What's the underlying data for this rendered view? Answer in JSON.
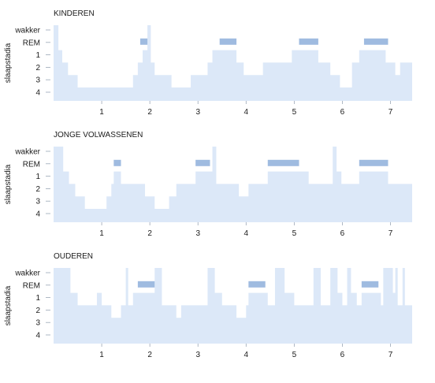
{
  "chart_data": [
    {
      "type": "area",
      "title": "KINDEREN",
      "ylabel": "slaapstadia",
      "y_categories": [
        "wakker",
        "REM",
        "1",
        "2",
        "3",
        "4"
      ],
      "xticks": [
        "1",
        "2",
        "3",
        "4",
        "5",
        "6",
        "7"
      ],
      "xlim": [
        0,
        7.45
      ],
      "fill_color": "#dce8f8",
      "rem_color": "#9fbbe0",
      "hypnogram": [
        {
          "x": 0.0,
          "stage": "wakker"
        },
        {
          "x": 0.1,
          "stage": "1"
        },
        {
          "x": 0.18,
          "stage": "2"
        },
        {
          "x": 0.3,
          "stage": "3"
        },
        {
          "x": 0.5,
          "stage": "4"
        },
        {
          "x": 1.65,
          "stage": "3"
        },
        {
          "x": 1.75,
          "stage": "2"
        },
        {
          "x": 1.85,
          "stage": "1"
        },
        {
          "x": 1.95,
          "stage": "wakker"
        },
        {
          "x": 2.02,
          "stage": "2"
        },
        {
          "x": 2.1,
          "stage": "3"
        },
        {
          "x": 2.25,
          "stage": "3"
        },
        {
          "x": 2.45,
          "stage": "4"
        },
        {
          "x": 2.85,
          "stage": "3"
        },
        {
          "x": 3.2,
          "stage": "2"
        },
        {
          "x": 3.3,
          "stage": "1"
        },
        {
          "x": 3.8,
          "stage": "2"
        },
        {
          "x": 3.95,
          "stage": "3"
        },
        {
          "x": 4.35,
          "stage": "2"
        },
        {
          "x": 4.95,
          "stage": "1"
        },
        {
          "x": 5.5,
          "stage": "2"
        },
        {
          "x": 5.75,
          "stage": "3"
        },
        {
          "x": 5.95,
          "stage": "4"
        },
        {
          "x": 6.2,
          "stage": "2"
        },
        {
          "x": 6.35,
          "stage": "1"
        },
        {
          "x": 6.9,
          "stage": "2"
        },
        {
          "x": 7.1,
          "stage": "3"
        },
        {
          "x": 7.2,
          "stage": "2"
        }
      ],
      "rem_periods": [
        [
          1.8,
          1.95
        ],
        [
          3.45,
          3.8
        ],
        [
          5.1,
          5.5
        ],
        [
          6.45,
          6.95
        ]
      ]
    },
    {
      "type": "area",
      "title": "JONGE VOLWASSENEN",
      "ylabel": "slaapstadia",
      "y_categories": [
        "wakker",
        "REM",
        "1",
        "2",
        "3",
        "4"
      ],
      "xticks": [
        "1",
        "2",
        "3",
        "4",
        "5",
        "6",
        "7"
      ],
      "xlim": [
        0,
        7.45
      ],
      "fill_color": "#dce8f8",
      "rem_color": "#9fbbe0",
      "hypnogram": [
        {
          "x": 0.0,
          "stage": "wakker"
        },
        {
          "x": 0.2,
          "stage": "1"
        },
        {
          "x": 0.32,
          "stage": "2"
        },
        {
          "x": 0.45,
          "stage": "3"
        },
        {
          "x": 0.65,
          "stage": "4"
        },
        {
          "x": 1.1,
          "stage": "3"
        },
        {
          "x": 1.2,
          "stage": "2"
        },
        {
          "x": 1.25,
          "stage": "1"
        },
        {
          "x": 1.4,
          "stage": "2"
        },
        {
          "x": 1.9,
          "stage": "3"
        },
        {
          "x": 2.1,
          "stage": "4"
        },
        {
          "x": 2.4,
          "stage": "3"
        },
        {
          "x": 2.55,
          "stage": "2"
        },
        {
          "x": 2.95,
          "stage": "1"
        },
        {
          "x": 3.3,
          "stage": "wakker"
        },
        {
          "x": 3.38,
          "stage": "2"
        },
        {
          "x": 3.85,
          "stage": "3"
        },
        {
          "x": 4.05,
          "stage": "2"
        },
        {
          "x": 4.45,
          "stage": "1"
        },
        {
          "x": 5.3,
          "stage": "2"
        },
        {
          "x": 5.8,
          "stage": "wakker"
        },
        {
          "x": 5.88,
          "stage": "1"
        },
        {
          "x": 5.98,
          "stage": "2"
        },
        {
          "x": 6.35,
          "stage": "1"
        },
        {
          "x": 6.95,
          "stage": "2"
        }
      ],
      "rem_periods": [
        [
          1.25,
          1.4
        ],
        [
          2.95,
          3.25
        ],
        [
          4.45,
          5.1
        ],
        [
          6.35,
          6.95
        ]
      ]
    },
    {
      "type": "area",
      "title": "OUDEREN",
      "ylabel": "slaapstadia",
      "y_categories": [
        "wakker",
        "REM",
        "1",
        "2",
        "3",
        "4"
      ],
      "xticks": [
        "1",
        "2",
        "3",
        "4",
        "5",
        "6",
        "7"
      ],
      "xlim": [
        0,
        7.45
      ],
      "fill_color": "#dce8f8",
      "rem_color": "#9fbbe0",
      "hypnogram": [
        {
          "x": 0.0,
          "stage": "wakker"
        },
        {
          "x": 0.35,
          "stage": "1"
        },
        {
          "x": 0.5,
          "stage": "2"
        },
        {
          "x": 0.9,
          "stage": "1"
        },
        {
          "x": 1.0,
          "stage": "2"
        },
        {
          "x": 1.2,
          "stage": "3"
        },
        {
          "x": 1.4,
          "stage": "2"
        },
        {
          "x": 1.5,
          "stage": "wakker"
        },
        {
          "x": 1.55,
          "stage": "2"
        },
        {
          "x": 1.65,
          "stage": "1"
        },
        {
          "x": 2.1,
          "stage": "wakker"
        },
        {
          "x": 2.25,
          "stage": "2"
        },
        {
          "x": 2.55,
          "stage": "3"
        },
        {
          "x": 2.65,
          "stage": "2"
        },
        {
          "x": 3.2,
          "stage": "wakker"
        },
        {
          "x": 3.35,
          "stage": "1"
        },
        {
          "x": 3.5,
          "stage": "2"
        },
        {
          "x": 3.8,
          "stage": "3"
        },
        {
          "x": 4.0,
          "stage": "2"
        },
        {
          "x": 4.05,
          "stage": "1"
        },
        {
          "x": 4.45,
          "stage": "2"
        },
        {
          "x": 4.6,
          "stage": "wakker"
        },
        {
          "x": 4.8,
          "stage": "1"
        },
        {
          "x": 5.0,
          "stage": "2"
        },
        {
          "x": 5.4,
          "stage": "wakker"
        },
        {
          "x": 5.55,
          "stage": "2"
        },
        {
          "x": 5.75,
          "stage": "wakker"
        },
        {
          "x": 5.9,
          "stage": "1"
        },
        {
          "x": 6.0,
          "stage": "2"
        },
        {
          "x": 6.1,
          "stage": "wakker"
        },
        {
          "x": 6.18,
          "stage": "1"
        },
        {
          "x": 6.3,
          "stage": "2"
        },
        {
          "x": 6.4,
          "stage": "1"
        },
        {
          "x": 6.8,
          "stage": "2"
        },
        {
          "x": 6.85,
          "stage": "wakker"
        },
        {
          "x": 7.05,
          "stage": "1"
        },
        {
          "x": 7.1,
          "stage": "wakker"
        },
        {
          "x": 7.15,
          "stage": "2"
        },
        {
          "x": 7.25,
          "stage": "wakker"
        },
        {
          "x": 7.3,
          "stage": "2"
        }
      ],
      "rem_periods": [
        [
          1.75,
          2.1
        ],
        [
          4.05,
          4.4
        ],
        [
          6.4,
          6.75
        ]
      ]
    }
  ]
}
